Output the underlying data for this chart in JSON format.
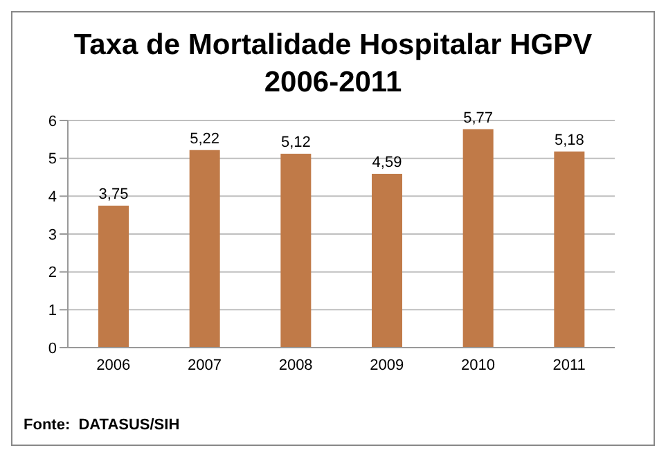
{
  "chart_data": {
    "type": "bar",
    "title": "Taxa de Mortalidade Hospitalar HGPV",
    "subtitle": "2006-2011",
    "categories": [
      "2006",
      "2007",
      "2008",
      "2009",
      "2010",
      "2011"
    ],
    "values": [
      3.75,
      5.22,
      5.12,
      4.59,
      5.77,
      5.18
    ],
    "value_labels": [
      "3,75",
      "5,22",
      "5,12",
      "4,59",
      "5,77",
      "5,18"
    ],
    "color": "#c07a48",
    "ylim": [
      0,
      6
    ],
    "yticks": [
      0,
      1,
      2,
      3,
      4,
      5,
      6
    ],
    "grid": "y",
    "annotations": [
      "Fonte:  DATASUS/SIH"
    ]
  }
}
